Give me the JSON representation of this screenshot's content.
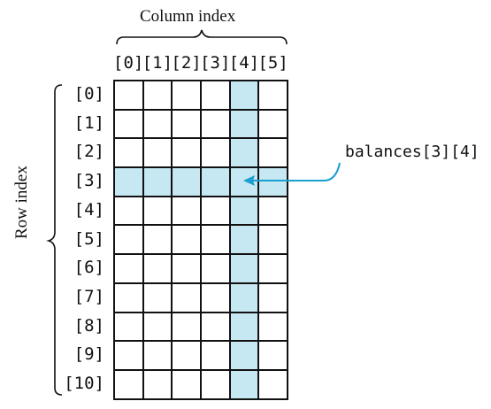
{
  "column_axis": {
    "title": "Column index",
    "labels": [
      "[0]",
      "[1]",
      "[2]",
      "[3]",
      "[4]",
      "[5]"
    ]
  },
  "row_axis": {
    "title": "Row index",
    "labels": [
      "[0]",
      "[1]",
      "[2]",
      "[3]",
      "[4]",
      "[5]",
      "[6]",
      "[7]",
      "[8]",
      "[9]",
      "[10]"
    ]
  },
  "grid": {
    "rows": 11,
    "columns": 6,
    "highlighted_row": 3,
    "highlighted_column": 4
  },
  "callout": {
    "text": "balances[3][4]"
  },
  "colors": {
    "highlight": "#c6e8f3",
    "arrow": "#1a9fd0",
    "ink": "#111111"
  }
}
